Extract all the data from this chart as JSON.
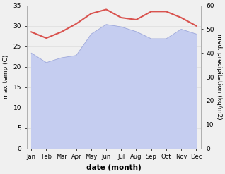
{
  "months": [
    "Jan",
    "Feb",
    "Mar",
    "Apr",
    "May",
    "Jun",
    "Jul",
    "Aug",
    "Sep",
    "Oct",
    "Nov",
    "Dec"
  ],
  "month_x": [
    0,
    1,
    2,
    3,
    4,
    5,
    6,
    7,
    8,
    9,
    10,
    11
  ],
  "max_temp": [
    28.5,
    27.0,
    28.5,
    30.5,
    33.0,
    34.0,
    32.0,
    31.5,
    33.5,
    33.5,
    32.0,
    30.0
  ],
  "precipitation": [
    40.0,
    36.0,
    38.0,
    39.0,
    48.0,
    52.0,
    51.0,
    49.0,
    46.0,
    46.0,
    50.0,
    48.0
  ],
  "temp_color": "#d9534f",
  "precip_fill_color": "#c5cdf0",
  "precip_line_color": "#a0aada",
  "ylim_left": [
    0,
    35
  ],
  "ylim_right": [
    0,
    60
  ],
  "yticks_left": [
    0,
    5,
    10,
    15,
    20,
    25,
    30,
    35
  ],
  "yticks_right": [
    0,
    10,
    20,
    30,
    40,
    50,
    60
  ],
  "ylabel_left": "max temp (C)",
  "ylabel_right": "med. precipitation (kg/m2)",
  "xlabel": "date (month)",
  "bg_color": "#f0f0f0",
  "grid_color": "#dddddd"
}
